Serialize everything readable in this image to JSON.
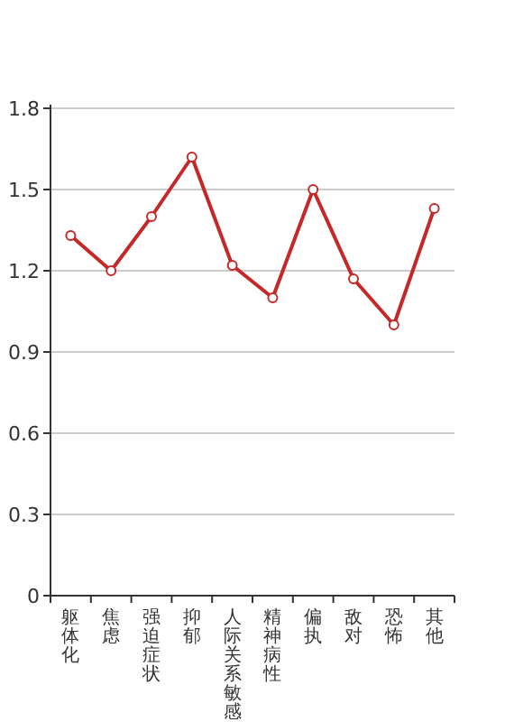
{
  "chart_data": {
    "type": "line",
    "categories": [
      "躯体化",
      "焦虑",
      "强迫症状",
      "抑郁",
      "人际关系敏感",
      "精神病性",
      "偏执",
      "敌对",
      "恐怖",
      "其他"
    ],
    "series": [
      {
        "color": "#c62828",
        "values": [
          1.33,
          1.2,
          1.4,
          1.62,
          1.22,
          1.1,
          1.5,
          1.17,
          1.0,
          1.43
        ]
      }
    ],
    "ylim": [
      0,
      1.8
    ],
    "yticks": [
      0,
      0.3,
      0.6,
      0.9,
      1.2,
      1.5,
      1.8
    ],
    "grid": "y",
    "marker": "circle",
    "line_style": "solid"
  }
}
